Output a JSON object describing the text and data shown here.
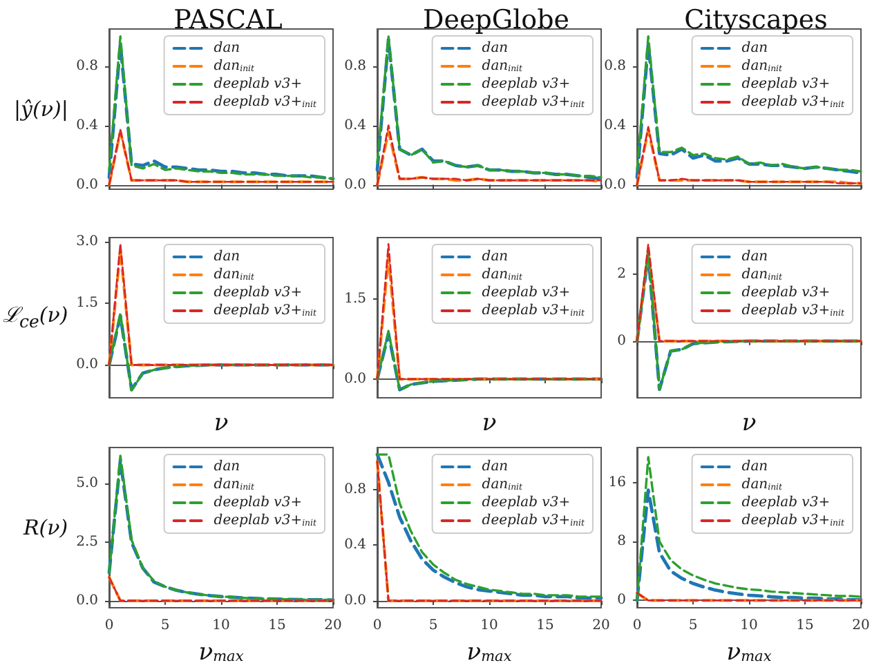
{
  "chart_data": [
    {
      "type": "line",
      "title": "PASCAL",
      "ylabel": "|ŷ(ν)|",
      "x": [
        0,
        1,
        2,
        3,
        4,
        5,
        6,
        7,
        8,
        9,
        10,
        11,
        12,
        13,
        14,
        15,
        16,
        17,
        18,
        19,
        20
      ],
      "xlim": [
        0,
        20
      ],
      "xticks": [
        0,
        5,
        10,
        15,
        20
      ],
      "ylim": [
        -0.03,
        1.05
      ],
      "yticks": [
        {
          "value": 0,
          "label": "0.0"
        },
        {
          "value": 0.4,
          "label": "0.4"
        },
        {
          "value": 0.8,
          "label": "0.8"
        }
      ],
      "tick_labels": "y",
      "legend": "top right",
      "line_style": "dashed",
      "series": [
        {
          "name": "dan",
          "color": "#1f77b4",
          "values": [
            0.05,
            0.95,
            0.14,
            0.13,
            0.16,
            0.12,
            0.12,
            0.11,
            0.1,
            0.1,
            0.09,
            0.09,
            0.08,
            0.08,
            0.07,
            0.07,
            0.06,
            0.06,
            0.06,
            0.05,
            0.04
          ]
        },
        {
          "name": "dan$_{init}$",
          "color": "#ff7f0e",
          "values": [
            0,
            0.36,
            0.03,
            0.03,
            0.03,
            0.03,
            0.03,
            0.02,
            0.02,
            0.02,
            0.02,
            0.02,
            0.02,
            0.02,
            0.02,
            0.02,
            0.02,
            0.02,
            0.02,
            0.02,
            0.02
          ]
        },
        {
          "name": "deeplab v3+",
          "color": "#2ca02c",
          "values": [
            0.1,
            1.0,
            0.13,
            0.11,
            0.14,
            0.1,
            0.11,
            0.1,
            0.09,
            0.09,
            0.08,
            0.08,
            0.07,
            0.07,
            0.07,
            0.06,
            0.06,
            0.06,
            0.05,
            0.05,
            0.04
          ]
        },
        {
          "name": "deeplab v3+$_{init}$",
          "color": "#d62728",
          "values": [
            0,
            0.37,
            0.03,
            0.03,
            0.03,
            0.03,
            0.03,
            0.02,
            0.02,
            0.02,
            0.02,
            0.02,
            0.02,
            0.02,
            0.02,
            0.02,
            0.02,
            0.02,
            0.02,
            0.02,
            0.02
          ]
        }
      ]
    },
    {
      "type": "line",
      "title": "DeepGlobe",
      "x": [
        0,
        1,
        2,
        3,
        4,
        5,
        6,
        7,
        8,
        9,
        10,
        11,
        12,
        13,
        14,
        15,
        16,
        17,
        18,
        19,
        20
      ],
      "xlim": [
        0,
        20
      ],
      "xticks": [
        0,
        5,
        10,
        15,
        20
      ],
      "ylim": [
        -0.03,
        1.05
      ],
      "yticks": [
        {
          "value": 0,
          "label": "0.0"
        },
        {
          "value": 0.4,
          "label": "0.4"
        },
        {
          "value": 0.8,
          "label": "0.8"
        }
      ],
      "tick_labels": "y",
      "legend": "top right",
      "line_style": "dashed",
      "series": [
        {
          "name": "dan",
          "color": "#1f77b4",
          "values": [
            0.1,
            0.98,
            0.24,
            0.2,
            0.24,
            0.16,
            0.16,
            0.13,
            0.12,
            0.13,
            0.1,
            0.1,
            0.09,
            0.09,
            0.08,
            0.08,
            0.07,
            0.07,
            0.06,
            0.05,
            0.04
          ]
        },
        {
          "name": "dan$_{init}$",
          "color": "#ff7f0e",
          "values": [
            0,
            0.36,
            0.04,
            0.04,
            0.05,
            0.04,
            0.04,
            0.03,
            0.03,
            0.04,
            0.03,
            0.03,
            0.03,
            0.03,
            0.03,
            0.03,
            0.03,
            0.03,
            0.03,
            0.03,
            0.02
          ]
        },
        {
          "name": "deeplab v3+",
          "color": "#2ca02c",
          "values": [
            0.15,
            1.0,
            0.24,
            0.2,
            0.24,
            0.15,
            0.16,
            0.13,
            0.12,
            0.13,
            0.1,
            0.1,
            0.09,
            0.09,
            0.08,
            0.08,
            0.07,
            0.07,
            0.06,
            0.06,
            0.05
          ]
        },
        {
          "name": "deeplab v3+$_{init}$",
          "color": "#d62728",
          "values": [
            0,
            0.4,
            0.04,
            0.04,
            0.05,
            0.04,
            0.04,
            0.04,
            0.03,
            0.04,
            0.03,
            0.03,
            0.03,
            0.03,
            0.03,
            0.03,
            0.03,
            0.03,
            0.03,
            0.03,
            0.03
          ]
        }
      ]
    },
    {
      "type": "line",
      "title": "Cityscapes",
      "x": [
        0,
        1,
        2,
        3,
        4,
        5,
        6,
        7,
        8,
        9,
        10,
        11,
        12,
        13,
        14,
        15,
        16,
        17,
        18,
        19,
        20
      ],
      "xlim": [
        0,
        20
      ],
      "xticks": [
        0,
        5,
        10,
        15,
        20
      ],
      "ylim": [
        -0.03,
        1.05
      ],
      "yticks": [
        {
          "value": 0,
          "label": "0.0"
        },
        {
          "value": 0.4,
          "label": "0.4"
        },
        {
          "value": 0.8,
          "label": "0.8"
        }
      ],
      "tick_labels": "y",
      "legend": "top right",
      "line_style": "dashed",
      "series": [
        {
          "name": "dan",
          "color": "#1f77b4",
          "values": [
            0.05,
            0.95,
            0.21,
            0.2,
            0.24,
            0.18,
            0.2,
            0.16,
            0.16,
            0.18,
            0.14,
            0.14,
            0.13,
            0.13,
            0.12,
            0.11,
            0.12,
            0.11,
            0.1,
            0.09,
            0.08
          ]
        },
        {
          "name": "dan$_{init}$",
          "color": "#ff7f0e",
          "values": [
            0,
            0.37,
            0.03,
            0.03,
            0.03,
            0.03,
            0.03,
            0.03,
            0.03,
            0.03,
            0.02,
            0.02,
            0.02,
            0.02,
            0.02,
            0.02,
            0.02,
            0.02,
            0.02,
            0.01,
            0.01
          ]
        },
        {
          "name": "deeplab v3+",
          "color": "#2ca02c",
          "values": [
            0.1,
            1.0,
            0.22,
            0.22,
            0.25,
            0.2,
            0.21,
            0.18,
            0.17,
            0.19,
            0.14,
            0.15,
            0.13,
            0.14,
            0.12,
            0.11,
            0.12,
            0.11,
            0.1,
            0.1,
            0.09
          ]
        },
        {
          "name": "deeplab v3+$_{init}$",
          "color": "#d62728",
          "values": [
            0,
            0.39,
            0.03,
            0.03,
            0.04,
            0.03,
            0.03,
            0.03,
            0.03,
            0.03,
            0.02,
            0.02,
            0.02,
            0.02,
            0.02,
            0.02,
            0.02,
            0.02,
            0.01,
            0.01,
            0.01
          ]
        }
      ]
    },
    {
      "type": "line",
      "xlabel": "ν",
      "ylabel": "ℒ$_{ce}$(ν)",
      "x": [
        0,
        1,
        2,
        3,
        4,
        5,
        6,
        7,
        8,
        9,
        10,
        11,
        12,
        13,
        14,
        15,
        16,
        17,
        18,
        19,
        20
      ],
      "xlim": [
        0,
        20
      ],
      "xticks": [
        0,
        5,
        10,
        15,
        20
      ],
      "ylim": [
        -0.8,
        3.1
      ],
      "yticks": [
        {
          "value": 0,
          "label": "0.0"
        },
        {
          "value": 1.5,
          "label": "1.5"
        },
        {
          "value": 3,
          "label": "3.0"
        }
      ],
      "tick_labels": "y",
      "legend": "top right",
      "line_style": "dashed",
      "series": [
        {
          "name": "dan",
          "color": "#1f77b4",
          "values": [
            0,
            1.2,
            -0.6,
            -0.2,
            -0.12,
            -0.07,
            -0.04,
            -0.02,
            -0.01,
            0,
            0,
            0,
            0,
            0,
            0,
            0,
            0,
            0,
            0,
            0,
            0
          ]
        },
        {
          "name": "dan$_{init}$",
          "color": "#ff7f0e",
          "values": [
            0,
            2.8,
            0,
            0,
            0,
            0,
            0,
            0,
            0,
            0,
            0,
            0,
            0,
            0,
            0,
            0,
            0,
            0,
            0,
            0,
            0
          ]
        },
        {
          "name": "deeplab v3+",
          "color": "#2ca02c",
          "values": [
            0,
            1.25,
            -0.62,
            -0.2,
            -0.12,
            -0.07,
            -0.04,
            -0.02,
            -0.01,
            0,
            0,
            0,
            0,
            0,
            0,
            0,
            0,
            0,
            0,
            0,
            0
          ]
        },
        {
          "name": "deeplab v3+$_{init}$",
          "color": "#d62728",
          "values": [
            0,
            2.95,
            0,
            0,
            0,
            0,
            0,
            0,
            0,
            0,
            0,
            0,
            0,
            0,
            0,
            0,
            0,
            0,
            0,
            0,
            0
          ]
        }
      ]
    },
    {
      "type": "line",
      "xlabel": "ν",
      "x": [
        0,
        1,
        2,
        3,
        4,
        5,
        6,
        7,
        8,
        9,
        10,
        11,
        12,
        13,
        14,
        15,
        16,
        17,
        18,
        19,
        20
      ],
      "xlim": [
        0,
        20
      ],
      "xticks": [
        0,
        5,
        10,
        15,
        20
      ],
      "ylim": [
        -0.35,
        2.65
      ],
      "yticks": [
        {
          "value": 0,
          "label": "0.0"
        },
        {
          "value": 1.5,
          "label": "1.5"
        }
      ],
      "tick_labels": "y",
      "legend": "top right",
      "line_style": "dashed",
      "series": [
        {
          "name": "dan",
          "color": "#1f77b4",
          "values": [
            0,
            0.85,
            -0.2,
            -0.1,
            -0.07,
            -0.04,
            -0.03,
            -0.02,
            -0.01,
            0,
            0,
            0,
            0,
            0,
            0,
            0,
            0,
            0,
            0,
            0,
            0
          ]
        },
        {
          "name": "dan$_{init}$",
          "color": "#ff7f0e",
          "values": [
            0,
            2.3,
            0,
            0,
            0,
            0,
            0,
            0,
            0,
            0,
            0,
            0,
            0,
            0,
            0,
            0,
            0,
            0,
            0,
            0,
            0
          ]
        },
        {
          "name": "deeplab v3+",
          "color": "#2ca02c",
          "values": [
            0,
            0.9,
            -0.2,
            -0.1,
            -0.07,
            -0.04,
            -0.03,
            -0.02,
            -0.01,
            0,
            0,
            0,
            0,
            0,
            0,
            0,
            0,
            0,
            0,
            0,
            0
          ]
        },
        {
          "name": "deeplab v3+$_{init}$",
          "color": "#d62728",
          "values": [
            0,
            2.53,
            0,
            0,
            0,
            0,
            0,
            0,
            0,
            0,
            0,
            0,
            0,
            0,
            0,
            0,
            0,
            0,
            0,
            0,
            0
          ]
        }
      ]
    },
    {
      "type": "line",
      "xlabel": "ν",
      "x": [
        0,
        1,
        2,
        3,
        4,
        5,
        6,
        7,
        8,
        9,
        10,
        11,
        12,
        13,
        14,
        15,
        16,
        17,
        18,
        19,
        20
      ],
      "xlim": [
        0,
        20
      ],
      "xticks": [
        0,
        5,
        10,
        15,
        20
      ],
      "ylim": [
        -1.7,
        3.1
      ],
      "yticks": [
        0,
        2
      ],
      "tick_labels": "y",
      "legend": "top right",
      "line_style": "dashed",
      "series": [
        {
          "name": "dan",
          "color": "#1f77b4",
          "values": [
            0,
            2.6,
            -1.45,
            -0.3,
            -0.25,
            -0.08,
            -0.05,
            -0.03,
            -0.02,
            -0.01,
            0,
            0,
            0,
            0,
            0,
            0,
            0,
            0,
            0,
            0,
            0
          ]
        },
        {
          "name": "dan$_{init}$",
          "color": "#ff7f0e",
          "values": [
            0,
            2.7,
            0,
            0,
            0,
            0,
            0,
            0,
            0,
            0,
            0,
            0,
            0,
            0,
            0,
            0,
            0,
            0,
            0,
            0,
            0
          ]
        },
        {
          "name": "deeplab v3+",
          "color": "#2ca02c",
          "values": [
            0,
            2.7,
            -1.45,
            -0.3,
            -0.25,
            -0.08,
            -0.05,
            -0.03,
            -0.02,
            -0.01,
            0,
            0,
            0,
            0,
            0,
            0,
            0,
            0,
            0,
            0,
            0
          ]
        },
        {
          "name": "deeplab v3+$_{init}$",
          "color": "#d62728",
          "values": [
            0,
            2.9,
            0,
            0,
            0,
            0,
            0,
            0,
            0,
            0,
            0,
            0,
            0,
            0,
            0,
            0,
            0,
            0,
            0,
            0,
            0
          ]
        }
      ]
    },
    {
      "type": "line",
      "xlabel": "ν$_{max}$",
      "ylabel": "R(ν)",
      "x": [
        0,
        1,
        2,
        3,
        4,
        5,
        6,
        7,
        8,
        9,
        10,
        11,
        12,
        13,
        14,
        15,
        16,
        17,
        18,
        19,
        20
      ],
      "xlim": [
        0,
        20
      ],
      "xticks": [
        0,
        5,
        10,
        15,
        20
      ],
      "ylim": [
        -0.3,
        6.55
      ],
      "yticks": [
        {
          "value": 0,
          "label": "0.0"
        },
        {
          "value": 2.5,
          "label": "2.5"
        },
        {
          "value": 5,
          "label": "5.0"
        }
      ],
      "legend": "top right",
      "line_style": "dashed",
      "series": [
        {
          "name": "dan",
          "color": "#1f77b4",
          "values": [
            1.2,
            6.0,
            2.5,
            1.4,
            0.8,
            0.6,
            0.45,
            0.35,
            0.28,
            0.22,
            0.18,
            0.15,
            0.12,
            0.1,
            0.08,
            0.07,
            0.06,
            0.05,
            0.04,
            0.04,
            0.03
          ]
        },
        {
          "name": "dan$_{init}$",
          "color": "#ff7f0e",
          "values": [
            1.0,
            0,
            0,
            0,
            0,
            0,
            0,
            0,
            0,
            0,
            0,
            0,
            0,
            0,
            0,
            0,
            0,
            0,
            0,
            0,
            0
          ]
        },
        {
          "name": "deeplab v3+",
          "color": "#2ca02c",
          "values": [
            1.2,
            6.2,
            2.6,
            1.4,
            0.85,
            0.6,
            0.45,
            0.35,
            0.28,
            0.22,
            0.18,
            0.15,
            0.12,
            0.1,
            0.08,
            0.07,
            0.06,
            0.05,
            0.04,
            0.04,
            0.03
          ]
        },
        {
          "name": "deeplab v3+$_{init}$",
          "color": "#d62728",
          "values": [
            1.0,
            0,
            0,
            0,
            0,
            0,
            0,
            0,
            0,
            0,
            0,
            0,
            0,
            0,
            0,
            0,
            0,
            0,
            0,
            0,
            0
          ]
        }
      ]
    },
    {
      "type": "line",
      "xlabel": "ν$_{max}$",
      "x": [
        0,
        1,
        2,
        3,
        4,
        5,
        6,
        7,
        8,
        9,
        10,
        11,
        12,
        13,
        14,
        15,
        16,
        17,
        18,
        19,
        20
      ],
      "xlim": [
        0,
        20
      ],
      "xticks": [
        0,
        5,
        10,
        15,
        20
      ],
      "ylim": [
        -0.05,
        1.1
      ],
      "yticks": [
        {
          "value": 0,
          "label": "0.0"
        },
        {
          "value": 0.4,
          "label": "0.4"
        },
        {
          "value": 0.8,
          "label": "0.8"
        }
      ],
      "legend": "top right",
      "line_style": "dashed",
      "series": [
        {
          "name": "dan",
          "color": "#1f77b4",
          "values": [
            1.05,
            0.85,
            0.6,
            0.43,
            0.3,
            0.22,
            0.17,
            0.13,
            0.1,
            0.08,
            0.07,
            0.06,
            0.05,
            0.04,
            0.04,
            0.03,
            0.03,
            0.03,
            0.02,
            0.02,
            0.02
          ]
        },
        {
          "name": "dan$_{init}$",
          "color": "#ff7f0e",
          "values": [
            1.0,
            0,
            0,
            0,
            0,
            0,
            0,
            0,
            0,
            0,
            0,
            0,
            0,
            0,
            0,
            0,
            0,
            0,
            0,
            0,
            0
          ]
        },
        {
          "name": "deeplab v3+",
          "color": "#2ca02c",
          "values": [
            1.05,
            1.05,
            0.7,
            0.5,
            0.35,
            0.26,
            0.2,
            0.15,
            0.12,
            0.1,
            0.08,
            0.07,
            0.06,
            0.05,
            0.05,
            0.04,
            0.04,
            0.04,
            0.03,
            0.03,
            0.03
          ]
        },
        {
          "name": "deeplab v3+$_{init}$",
          "color": "#d62728",
          "values": [
            1.0,
            0,
            0,
            0,
            0,
            0,
            0,
            0,
            0,
            0,
            0,
            0,
            0,
            0,
            0,
            0,
            0,
            0,
            0,
            0,
            0
          ]
        }
      ]
    },
    {
      "type": "line",
      "xlabel": "ν$_{max}$",
      "x": [
        0,
        1,
        2,
        3,
        4,
        5,
        6,
        7,
        8,
        9,
        10,
        11,
        12,
        13,
        14,
        15,
        16,
        17,
        18,
        19,
        20
      ],
      "xlim": [
        0,
        20
      ],
      "xticks": [
        0,
        5,
        10,
        15,
        20
      ],
      "ylim": [
        -1,
        20.8
      ],
      "yticks": [
        0,
        8,
        16
      ],
      "legend": "top right",
      "line_style": "dashed",
      "series": [
        {
          "name": "dan",
          "color": "#1f77b4",
          "values": [
            0,
            15,
            6.5,
            4,
            3,
            2.3,
            1.8,
            1.4,
            1.1,
            0.9,
            0.7,
            0.6,
            0.5,
            0.4,
            0.4,
            0.3,
            0.3,
            0.2,
            0.2,
            0.1,
            0.1
          ]
        },
        {
          "name": "dan$_{init}$",
          "color": "#ff7f0e",
          "values": [
            1.0,
            0,
            0,
            0,
            0,
            0,
            0,
            0,
            0,
            0,
            0,
            0,
            0,
            0,
            0,
            0,
            0,
            0,
            0,
            0,
            0
          ]
        },
        {
          "name": "deeplab v3+",
          "color": "#2ca02c",
          "values": [
            0,
            19.5,
            8,
            5.5,
            4.2,
            3.4,
            2.8,
            2.3,
            2.0,
            1.7,
            1.5,
            1.4,
            1.2,
            1.1,
            1.0,
            0.9,
            0.8,
            0.7,
            0.6,
            0.6,
            0.5
          ]
        },
        {
          "name": "deeplab v3+$_{init}$",
          "color": "#d62728",
          "values": [
            1.0,
            0,
            0,
            0,
            0,
            0,
            0,
            0,
            0,
            0,
            0,
            0,
            0,
            0,
            0,
            0,
            0,
            0,
            0,
            0,
            0
          ]
        }
      ]
    }
  ]
}
